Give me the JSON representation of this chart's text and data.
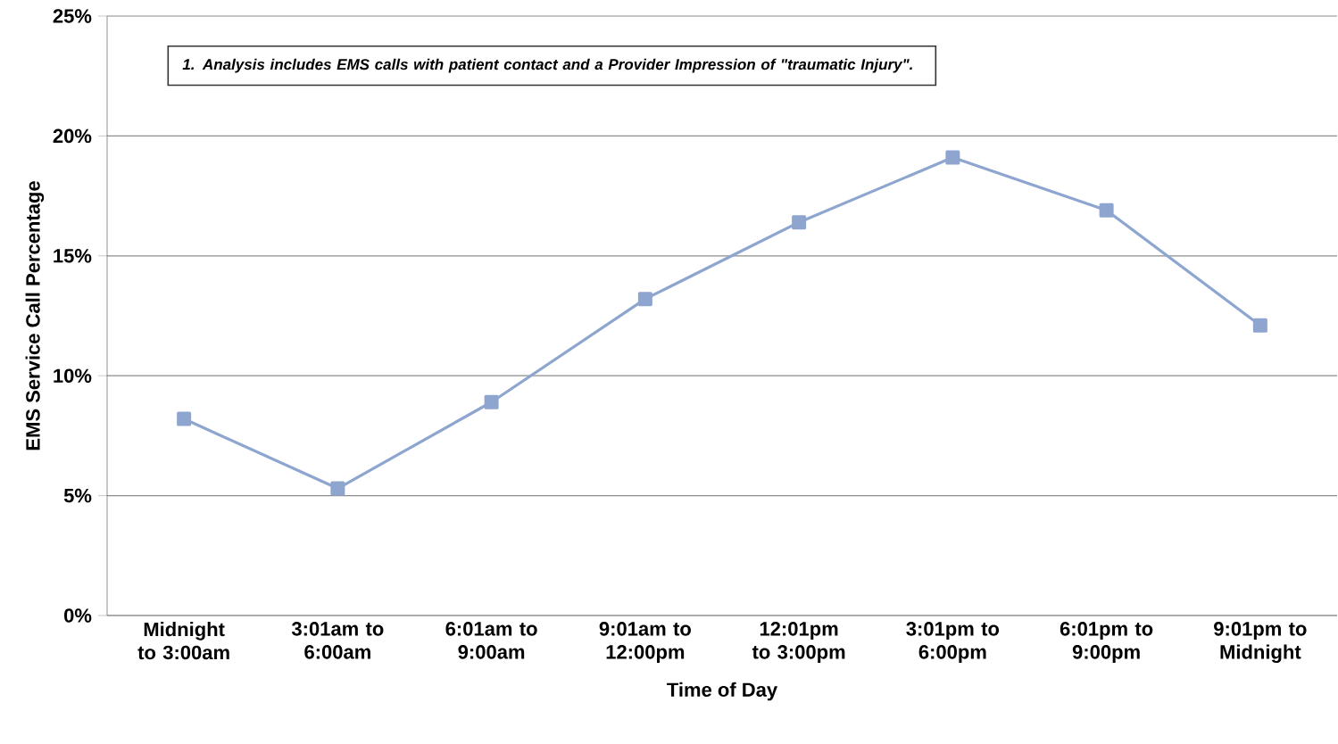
{
  "chart_data": {
    "type": "line",
    "xlabel": "Time of Day",
    "ylabel": "EMS Service Call Percentage",
    "categories": [
      "Midnight to 3:00am",
      "3:01am to 6:00am",
      "6:01am to 9:00am",
      "9:01am to 12:00pm",
      "12:01pm to 3:00pm",
      "3:01pm to 6:00pm",
      "6:01pm to 9:00pm",
      "9:01pm to Midnight"
    ],
    "series": [
      {
        "color": "#8ea6cf",
        "values": [
          8.2,
          5.3,
          8.9,
          13.2,
          16.4,
          19.1,
          16.9,
          12.1
        ]
      }
    ],
    "ylim": [
      0,
      25
    ],
    "yticks": [
      {
        "value": 0,
        "label": "0%"
      },
      {
        "value": 5,
        "label": "5%"
      },
      {
        "value": 10,
        "label": "10%"
      },
      {
        "value": 15,
        "label": "15%"
      },
      {
        "value": 20,
        "label": "20%"
      },
      {
        "value": 25,
        "label": "25%"
      }
    ],
    "grid": "y",
    "marker": "square",
    "line_style": "solid",
    "annotations": [
      "1.  Analysis includes EMS calls with patient contact and a Provider Impression of \"traumatic Injury\"."
    ]
  }
}
